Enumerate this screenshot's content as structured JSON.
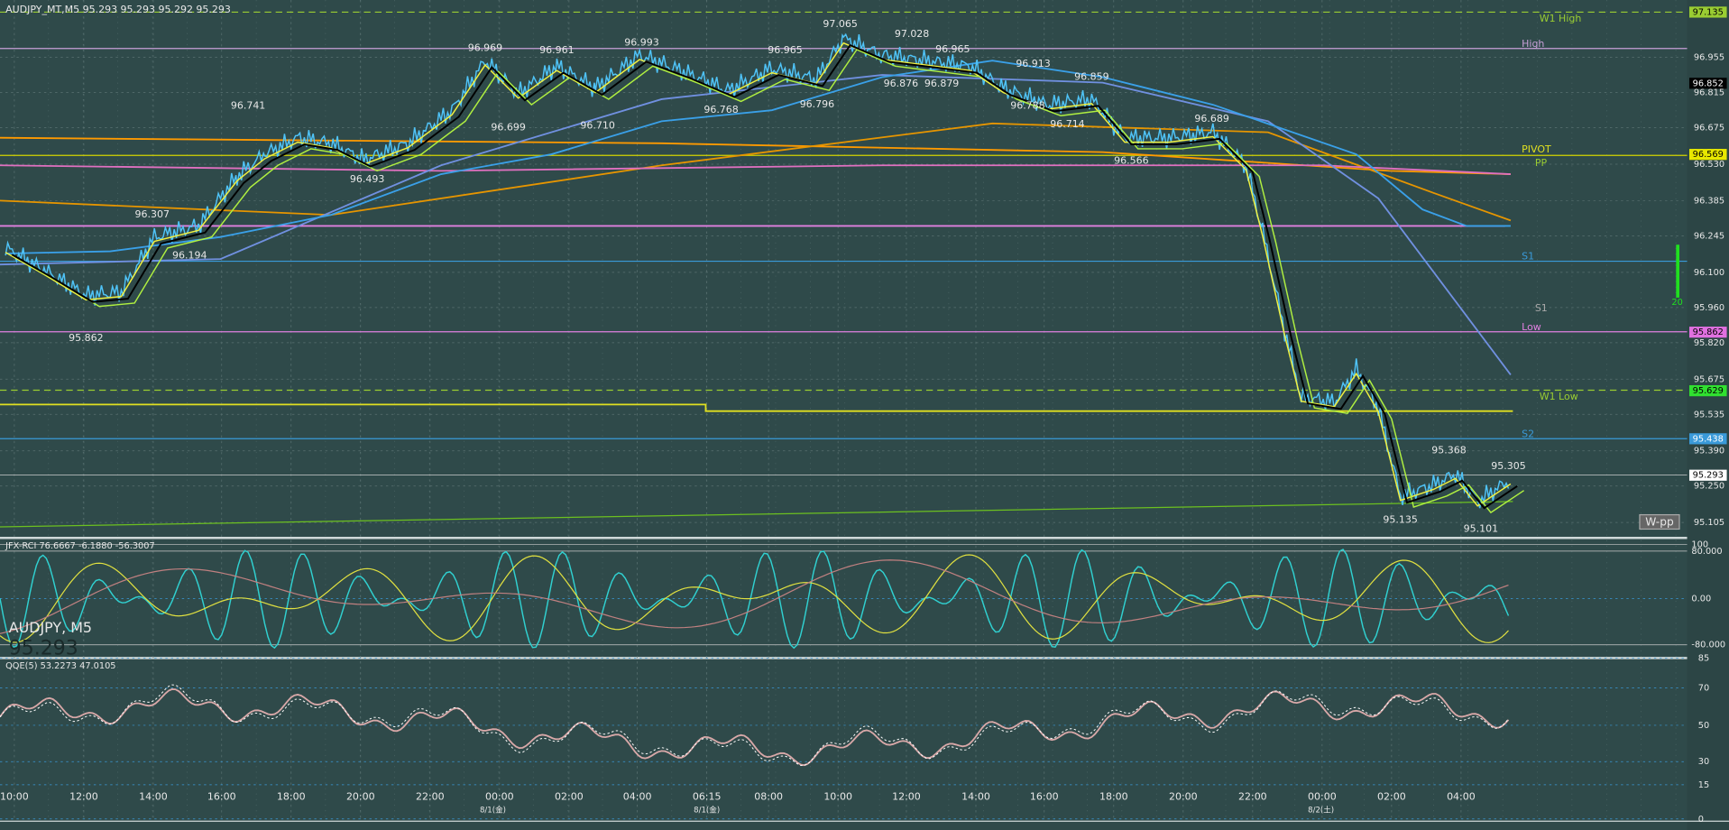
{
  "header": {
    "symbol_info": "AUDJPY_MT,M5  95.293 95.293 95.292 95.293"
  },
  "price_axis": {
    "ticks": [
      "96.955",
      "96.815",
      "96.675",
      "96.530",
      "96.385",
      "96.245",
      "96.100",
      "95.960",
      "95.820",
      "95.675",
      "95.535",
      "95.390",
      "95.250",
      "95.105"
    ],
    "markers": [
      "97.135",
      "96.852",
      "96.569",
      "95.862",
      "95.629",
      "95.438",
      "95.293"
    ]
  },
  "line_labels": [
    "W1 High",
    "High",
    "PIVOT",
    "PP",
    "S1",
    "S1",
    "Low",
    "W1 Low",
    "S2"
  ],
  "badge": "W-pp",
  "ma_label": "20",
  "price_annotations": [
    "96.741",
    "96.307",
    "96.194",
    "95.862",
    "96.969",
    "96.961",
    "96.993",
    "96.699",
    "96.493",
    "96.710",
    "96.965",
    "96.768",
    "96.796",
    "97.065",
    "97.028",
    "96.965",
    "96.876",
    "96.879",
    "96.913",
    "96.859",
    "96.788",
    "96.714",
    "96.689",
    "96.566",
    "95.368",
    "95.305",
    "95.135",
    "95.101"
  ],
  "rci": {
    "title": "JFX-RCI 76.6667 -6.1880 -56.3007",
    "ticks": [
      "100",
      "80.000",
      "0.00",
      "-80.000"
    ],
    "symbol": "AUDJPY, M5",
    "price": "95.293"
  },
  "qqe": {
    "title": "QQE(5) 53.2273 47.0105",
    "ticks": [
      "85",
      "70",
      "50",
      "30",
      "15",
      "0"
    ]
  },
  "time_axis": {
    "times": [
      "10:00",
      "12:00",
      "14:00",
      "16:00",
      "18:00",
      "20:00",
      "22:00",
      "00:00",
      "02:00",
      "04:00",
      "06:15",
      "08:00",
      "10:00",
      "12:00",
      "14:00",
      "16:00",
      "18:00",
      "20:00",
      "22:00",
      "00:00",
      "02:00",
      "04:00"
    ],
    "dates": [
      "8/1(金)",
      "8/1(金)",
      "8/2(土)"
    ]
  }
}
